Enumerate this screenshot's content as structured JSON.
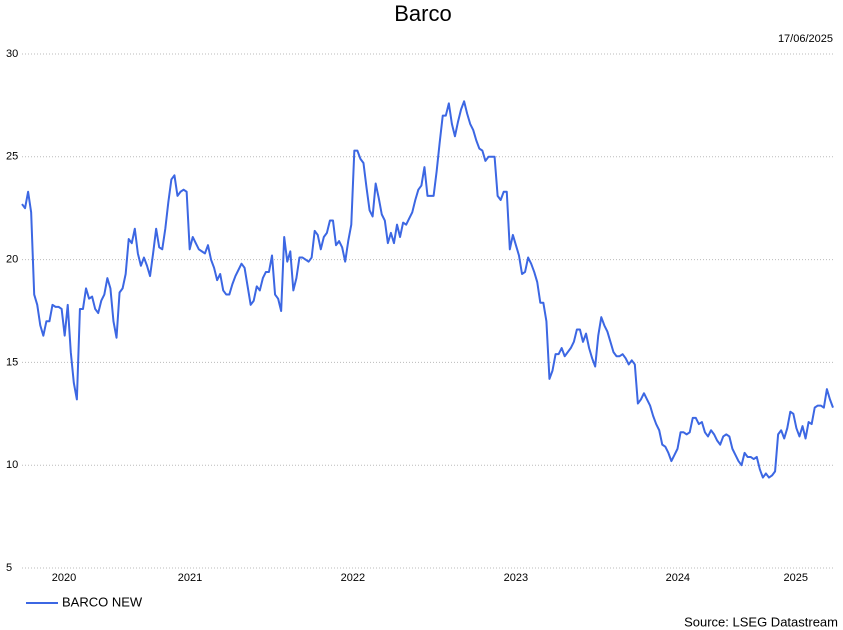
{
  "chart_data": {
    "type": "line",
    "title": "Barco",
    "date": "17/06/2025",
    "source": "Source: LSEG Datastream",
    "x": [
      2020.46,
      2020.479,
      2020.498,
      2020.517,
      2020.536,
      2020.555,
      2020.574,
      2020.593,
      2020.612,
      2020.631,
      2020.65,
      2020.669,
      2020.688,
      2020.707,
      2020.726,
      2020.745,
      2020.764,
      2020.783,
      2020.802,
      2020.821,
      2020.84,
      2020.859,
      2020.878,
      2020.897,
      2020.916,
      2020.935,
      2020.954,
      2020.973,
      2020.992,
      2021.011,
      2021.03,
      2021.049,
      2021.068,
      2021.087,
      2021.106,
      2021.125,
      2021.144,
      2021.163,
      2021.182,
      2021.201,
      2021.22,
      2021.239,
      2021.258,
      2021.277,
      2021.296,
      2021.315,
      2021.334,
      2021.353,
      2021.372,
      2021.391,
      2021.41,
      2021.429,
      2021.448,
      2021.467,
      2021.486,
      2021.505,
      2021.524,
      2021.543,
      2021.562,
      2021.581,
      2021.6,
      2021.619,
      2021.638,
      2021.657,
      2021.676,
      2021.695,
      2021.714,
      2021.733,
      2021.752,
      2021.771,
      2021.79,
      2021.809,
      2021.828,
      2021.847,
      2021.866,
      2021.885,
      2021.904,
      2021.923,
      2021.942,
      2021.961,
      2021.98,
      2021.999,
      2022.018,
      2022.037,
      2022.056,
      2022.075,
      2022.094,
      2022.113,
      2022.132,
      2022.151,
      2022.17,
      2022.189,
      2022.208,
      2022.227,
      2022.246,
      2022.265,
      2022.284,
      2022.303,
      2022.322,
      2022.341,
      2022.36,
      2022.379,
      2022.398,
      2022.417,
      2022.436,
      2022.455,
      2022.474,
      2022.493,
      2022.512,
      2022.531,
      2022.55,
      2022.569,
      2022.588,
      2022.607,
      2022.626,
      2022.645,
      2022.664,
      2022.683,
      2022.702,
      2022.721,
      2022.74,
      2022.759,
      2022.778,
      2022.797,
      2022.816,
      2022.835,
      2022.854,
      2022.873,
      2022.892,
      2022.911,
      2022.93,
      2022.949,
      2022.968,
      2022.987,
      2023.006,
      2023.025,
      2023.044,
      2023.063,
      2023.082,
      2023.101,
      2023.12,
      2023.139,
      2023.158,
      2023.177,
      2023.196,
      2023.215,
      2023.234,
      2023.253,
      2023.272,
      2023.291,
      2023.31,
      2023.329,
      2023.348,
      2023.367,
      2023.386,
      2023.405,
      2023.424,
      2023.443,
      2023.462,
      2023.481,
      2023.5,
      2023.519,
      2023.538,
      2023.557,
      2023.576,
      2023.595,
      2023.614,
      2023.633,
      2023.652,
      2023.671,
      2023.69,
      2023.709,
      2023.728,
      2023.747,
      2023.766,
      2023.785,
      2023.804,
      2023.823,
      2023.842,
      2023.861,
      2023.88,
      2023.899,
      2023.918,
      2023.937,
      2023.956,
      2023.975,
      2023.994,
      2024.013,
      2024.032,
      2024.051,
      2024.07,
      2024.089,
      2024.108,
      2024.127,
      2024.146,
      2024.165,
      2024.184,
      2024.203,
      2024.222,
      2024.241,
      2024.26,
      2024.279,
      2024.298,
      2024.317,
      2024.336,
      2024.355,
      2024.374,
      2024.393,
      2024.412,
      2024.431,
      2024.45,
      2024.469,
      2024.488,
      2024.507,
      2024.526,
      2024.545,
      2024.564,
      2024.583,
      2024.602,
      2024.621,
      2024.64,
      2024.659,
      2024.678,
      2024.697,
      2024.716,
      2024.735,
      2024.754,
      2024.773,
      2024.792,
      2024.811,
      2024.83,
      2024.849,
      2024.868,
      2024.887,
      2024.906,
      2024.925,
      2024.944,
      2024.963,
      2024.982,
      2025.001,
      2025.02,
      2025.039,
      2025.058,
      2025.077,
      2025.096,
      2025.115,
      2025.134,
      2025.153,
      2025.172,
      2025.191,
      2025.21,
      2025.229,
      2025.248,
      2025.267,
      2025.286,
      2025.305,
      2025.324,
      2025.343,
      2025.362,
      2025.381,
      2025.4,
      2025.419,
      2025.438,
      2025.457,
      2025.476,
      2025.495,
      2025.514
    ],
    "series": [
      {
        "name": "BARCO NEW",
        "color": "#3c67e3",
        "values": [
          22.7,
          22.5,
          23.3,
          22.3,
          18.3,
          17.8,
          16.8,
          16.3,
          17.0,
          17.0,
          17.8,
          17.7,
          17.7,
          17.6,
          16.3,
          17.8,
          15.5,
          14.0,
          13.2,
          17.6,
          17.6,
          18.6,
          18.1,
          18.2,
          17.6,
          17.4,
          18.0,
          18.3,
          19.1,
          18.6,
          17.0,
          16.2,
          18.4,
          18.6,
          19.3,
          21.0,
          20.8,
          21.5,
          20.3,
          19.7,
          20.1,
          19.7,
          19.2,
          20.3,
          21.5,
          20.6,
          20.5,
          21.5,
          22.8,
          23.9,
          24.1,
          23.1,
          23.3,
          23.4,
          23.3,
          20.5,
          21.1,
          20.8,
          20.5,
          20.4,
          20.3,
          20.7,
          20.0,
          19.6,
          19.0,
          19.3,
          18.5,
          18.3,
          18.3,
          18.8,
          19.2,
          19.5,
          19.8,
          19.6,
          18.7,
          17.8,
          18.0,
          18.7,
          18.5,
          19.1,
          19.4,
          19.4,
          20.2,
          18.3,
          18.1,
          17.5,
          21.1,
          19.9,
          20.4,
          18.5,
          19.1,
          20.1,
          20.1,
          20.0,
          19.9,
          20.1,
          21.4,
          21.2,
          20.5,
          21.1,
          21.3,
          21.9,
          21.9,
          20.7,
          20.9,
          20.6,
          19.9,
          20.9,
          21.7,
          25.3,
          25.3,
          24.9,
          24.7,
          23.5,
          22.4,
          22.1,
          23.7,
          23.0,
          22.2,
          21.9,
          20.8,
          21.3,
          20.8,
          21.7,
          21.1,
          21.8,
          21.7,
          22.0,
          22.3,
          22.9,
          23.4,
          23.6,
          24.5,
          23.1,
          23.1,
          23.1,
          24.3,
          25.7,
          27.0,
          27.0,
          27.6,
          26.6,
          26.0,
          26.7,
          27.3,
          27.7,
          27.1,
          26.6,
          26.3,
          25.8,
          25.4,
          25.3,
          24.8,
          25.0,
          25.0,
          25.0,
          23.1,
          22.9,
          23.3,
          23.3,
          20.5,
          21.2,
          20.7,
          20.2,
          19.3,
          19.4,
          20.1,
          19.8,
          19.4,
          18.9,
          17.9,
          17.9,
          17.0,
          14.2,
          14.6,
          15.4,
          15.4,
          15.7,
          15.3,
          15.5,
          15.7,
          16.0,
          16.6,
          16.6,
          16.0,
          16.4,
          15.7,
          15.2,
          14.8,
          16.3,
          17.2,
          16.8,
          16.5,
          16.0,
          15.5,
          15.3,
          15.3,
          15.4,
          15.2,
          14.9,
          15.1,
          14.9,
          13.0,
          13.2,
          13.5,
          13.2,
          12.9,
          12.4,
          12.0,
          11.7,
          11.0,
          10.9,
          10.6,
          10.2,
          10.5,
          10.8,
          11.6,
          11.6,
          11.5,
          11.6,
          12.3,
          12.3,
          12.0,
          12.1,
          11.6,
          11.4,
          11.7,
          11.5,
          11.2,
          11.0,
          11.4,
          11.5,
          11.4,
          10.8,
          10.5,
          10.2,
          10.0,
          10.6,
          10.4,
          10.4,
          10.3,
          10.4,
          9.8,
          9.4,
          9.6,
          9.4,
          9.5,
          9.7,
          11.5,
          11.7,
          11.3,
          11.8,
          12.6,
          12.5,
          11.8,
          11.4,
          11.9,
          11.3,
          12.1,
          12.0,
          12.8,
          12.9,
          12.9,
          12.8,
          13.7,
          13.2,
          12.8
        ]
      }
    ],
    "xlim": [
      2020.46,
      2025.514
    ],
    "xticks": [
      {
        "value": 2020.722,
        "label": "2020"
      },
      {
        "value": 2021.507,
        "label": "2021"
      },
      {
        "value": 2022.522,
        "label": "2022"
      },
      {
        "value": 2023.538,
        "label": "2023"
      },
      {
        "value": 2024.547,
        "label": "2024"
      },
      {
        "value": 2025.282,
        "label": "2025"
      }
    ],
    "ylim": [
      5,
      30
    ],
    "yticks": [
      5,
      10,
      15,
      20,
      25,
      30
    ],
    "grid": true,
    "legend": "bottom-left"
  }
}
